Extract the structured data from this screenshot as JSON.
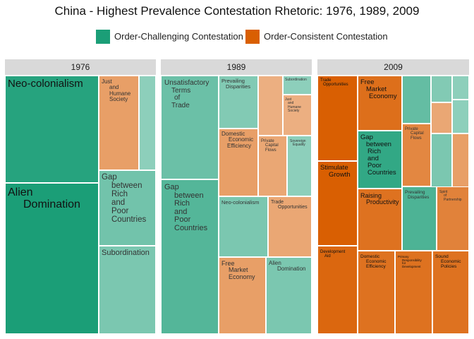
{
  "chart_data": {
    "type": "treemap",
    "title": "China - Highest Prevalence Contestation Rhetoric: 1976, 1989, 2009",
    "legend": {
      "position": "top",
      "entries": [
        {
          "label": "Order-Challenging Contestation",
          "color": "#1b9e77"
        },
        {
          "label": "Order-Consistent Contestation",
          "color": "#d95f02"
        }
      ]
    },
    "facets": [
      {
        "year": "1976",
        "tiles": [
          {
            "label": "Neo-colonialism",
            "category": "Order-Challenging Contestation",
            "shade": 0.95
          },
          {
            "label": "Alien Domination",
            "category": "Order-Challenging Contestation",
            "shade": 1.0
          },
          {
            "label": "Just and Humane Society",
            "category": "Order-Consistent Contestation",
            "shade": 0.6
          },
          {
            "label": "",
            "category": "Order-Challenging Contestation",
            "shade": 0.5
          },
          {
            "label": "Gap between Rich and Poor Countries",
            "category": "Order-Challenging Contestation",
            "shade": 0.62
          },
          {
            "label": "Subordination",
            "category": "Order-Challenging Contestation",
            "shade": 0.58
          }
        ]
      },
      {
        "year": "1989",
        "tiles": [
          {
            "label": "Unsatisfactory Terms of Trade",
            "category": "Order-Challenging Contestation",
            "shade": 0.65
          },
          {
            "label": "Gap between Rich and Poor Countries",
            "category": "Order-Challenging Contestation",
            "shade": 0.75
          },
          {
            "label": "Prevailing Disparities",
            "category": "Order-Challenging Contestation",
            "shade": 0.55
          },
          {
            "label": "",
            "category": "Order-Consistent Contestation",
            "shade": 0.5
          },
          {
            "label": "Subordination",
            "category": "Order-Challenging Contestation",
            "shade": 0.5
          },
          {
            "label": "Just and Humane Society",
            "category": "Order-Consistent Contestation",
            "shade": 0.5
          },
          {
            "label": "Domestic Economic Efficiency",
            "category": "Order-Consistent Contestation",
            "shade": 0.6
          },
          {
            "label": "Private Capital Flows",
            "category": "Order-Consistent Contestation",
            "shade": 0.55
          },
          {
            "label": "Sovereign Equality",
            "category": "Order-Challenging Contestation",
            "shade": 0.5
          },
          {
            "label": "Neo-colonialism",
            "category": "Order-Challenging Contestation",
            "shade": 0.58
          },
          {
            "label": "Trade Opportunities",
            "category": "Order-Consistent Contestation",
            "shade": 0.55
          },
          {
            "label": "Free Market Economy",
            "category": "Order-Consistent Contestation",
            "shade": 0.6
          },
          {
            "label": "Alien Domination",
            "category": "Order-Challenging Contestation",
            "shade": 0.58
          }
        ]
      },
      {
        "year": "2009",
        "tiles": [
          {
            "label": "Trade Opportunities",
            "category": "Order-Consistent Contestation",
            "shade": 1.0
          },
          {
            "label": "Stimulate Growth",
            "category": "Order-Consistent Contestation",
            "shade": 1.0
          },
          {
            "label": "Development Aid",
            "category": "Order-Consistent Contestation",
            "shade": 0.95
          },
          {
            "label": "Free Market Economy",
            "category": "Order-Consistent Contestation",
            "shade": 0.9
          },
          {
            "label": "",
            "category": "Order-Challenging Contestation",
            "shade": 0.68
          },
          {
            "label": "",
            "category": "Order-Challenging Contestation",
            "shade": 0.55
          },
          {
            "label": "",
            "category": "Order-Challenging Contestation",
            "shade": 0.5
          },
          {
            "label": "",
            "category": "Order-Consistent Contestation",
            "shade": 0.55
          },
          {
            "label": "",
            "category": "Order-Challenging Contestation",
            "shade": 0.5
          },
          {
            "label": "Gap between Rich and Poor Countries",
            "category": "Order-Challenging Contestation",
            "shade": 0.9
          },
          {
            "label": "Private Capital Flows",
            "category": "Order-Consistent Contestation",
            "shade": 0.75
          },
          {
            "label": "",
            "category": "Order-Challenging Contestation",
            "shade": 0.58
          },
          {
            "label": "",
            "category": "Order-Consistent Contestation",
            "shade": 0.6
          },
          {
            "label": "Raising Productivity",
            "category": "Order-Consistent Contestation",
            "shade": 0.88
          },
          {
            "label": "Prevailing Disparities",
            "category": "Order-Challenging Contestation",
            "shade": 0.78
          },
          {
            "label": "Spirit of Partnership",
            "category": "Order-Consistent Contestation",
            "shade": 0.78
          },
          {
            "label": "Domestic Economic Efficiency",
            "category": "Order-Consistent Contestation",
            "shade": 0.88
          },
          {
            "label": "Primary Responsibility for Development",
            "category": "Order-Consistent Contestation",
            "shade": 0.88
          },
          {
            "label": "Sound Economic Policies",
            "category": "Order-Consistent Contestation",
            "shade": 0.88
          }
        ]
      }
    ]
  }
}
